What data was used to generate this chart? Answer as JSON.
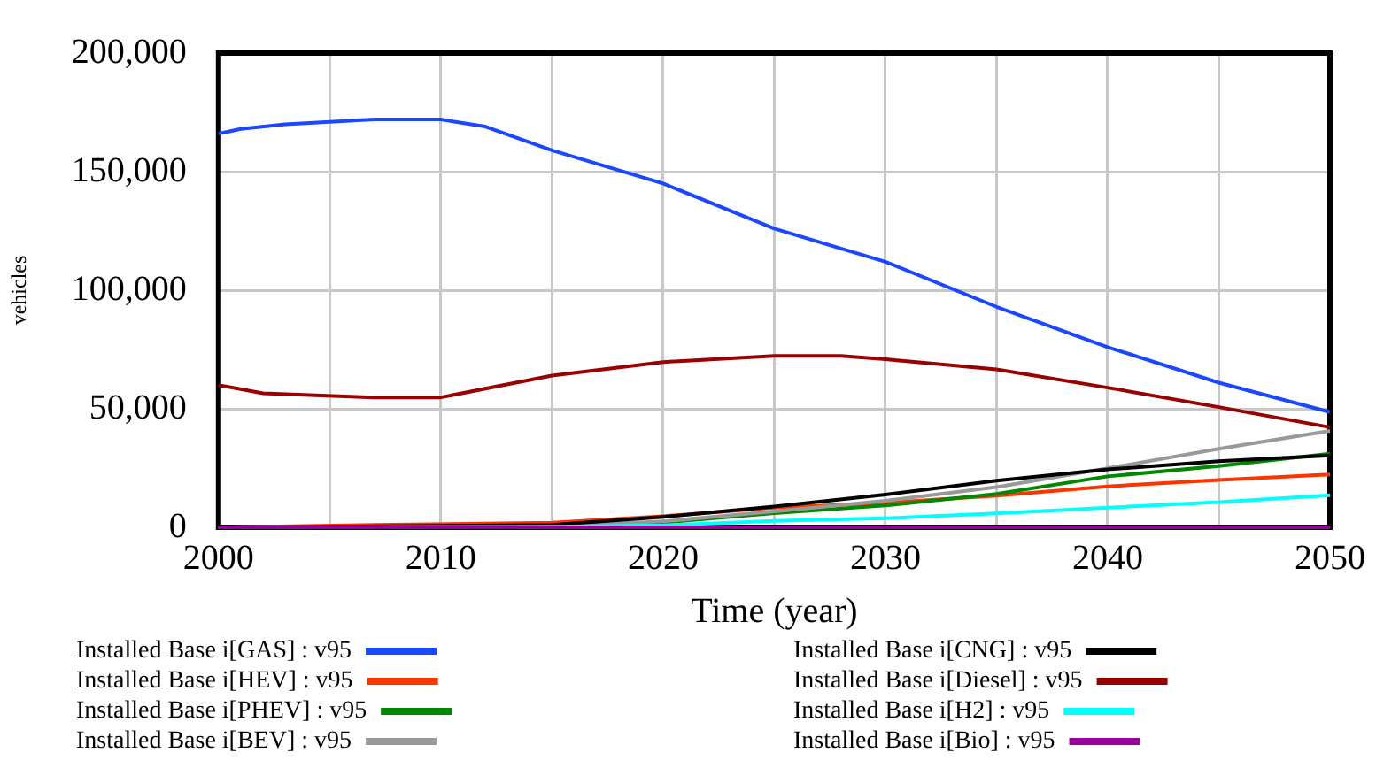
{
  "chart_data": {
    "type": "line",
    "xlabel": "Time (year)",
    "ylabel": "vehicles",
    "xlim": [
      2000,
      2050
    ],
    "ylim": [
      0,
      200000
    ],
    "xticks": [
      2000,
      {
        "value": 2005,
        "label": null
      },
      2010,
      {
        "value": 2015,
        "label": null
      },
      2020,
      {
        "value": 2025,
        "label": null
      },
      2030,
      {
        "value": 2035,
        "label": null
      },
      2040,
      {
        "value": 2045,
        "label": null
      },
      2050
    ],
    "yticks": [
      0,
      {
        "value": 50000,
        "label": "50,000"
      },
      {
        "value": 100000,
        "label": "100,000"
      },
      {
        "value": 150000,
        "label": "150,000"
      },
      {
        "value": 200000,
        "label": "200,000"
      }
    ],
    "grid": true,
    "legend": "bottom",
    "marker": "none",
    "line_style": "solid",
    "series": [
      {
        "name": "Installed Base i[GAS] : v95",
        "color": "#1a47ff",
        "x": [
          2000,
          2001,
          2003,
          2007,
          2010,
          2012,
          2015,
          2020,
          2025,
          2030,
          2035,
          2040,
          2045,
          2050
        ],
        "values": [
          166000,
          168000,
          170000,
          172000,
          172000,
          169000,
          159000,
          145000,
          126000,
          112000,
          93000,
          76000,
          61000,
          48600
        ]
      },
      {
        "name": "Installed Base i[HEV] : v95",
        "color": "#ff3300",
        "x": [
          2000,
          2007,
          2015,
          2020,
          2025,
          2030,
          2035,
          2040,
          2045,
          2050
        ],
        "values": [
          0,
          1000,
          2000,
          4700,
          8300,
          10300,
          13300,
          17300,
          20000,
          22300
        ]
      },
      {
        "name": "Installed Base i[PHEV] : v95",
        "color": "#008800",
        "x": [
          2000,
          2015,
          2020,
          2025,
          2030,
          2035,
          2040,
          2045,
          2050
        ],
        "values": [
          0,
          500,
          2000,
          6000,
          9200,
          14100,
          21500,
          25800,
          31100
        ]
      },
      {
        "name": "Installed Base i[BEV] : v95",
        "color": "#999999",
        "x": [
          2000,
          2015,
          2020,
          2025,
          2030,
          2035,
          2040,
          2045,
          2050
        ],
        "values": [
          0,
          500,
          2500,
          6700,
          11200,
          17000,
          24900,
          33100,
          40700
        ]
      },
      {
        "name": "Installed Base i[CNG] : v95",
        "color": "#000000",
        "x": [
          2000,
          2015,
          2020,
          2025,
          2030,
          2035,
          2040,
          2045,
          2050
        ],
        "values": [
          0,
          1000,
          4400,
          8800,
          13800,
          19700,
          24400,
          27900,
          30300
        ]
      },
      {
        "name": "Installed Base i[Diesel] : v95",
        "color": "#990000",
        "x": [
          2000,
          2002,
          2007,
          2010,
          2015,
          2020,
          2025,
          2028,
          2030,
          2035,
          2040,
          2045,
          2050
        ],
        "values": [
          60000,
          56500,
          54800,
          54800,
          64000,
          69700,
          72300,
          72300,
          70900,
          66600,
          58900,
          50700,
          42200
        ]
      },
      {
        "name": "Installed Base i[H2] : v95",
        "color": "#00ffff",
        "x": [
          2000,
          2015,
          2020,
          2025,
          2030,
          2035,
          2040,
          2045,
          2050
        ],
        "values": [
          0,
          300,
          800,
          2700,
          3800,
          5900,
          8300,
          10600,
          13500
        ]
      },
      {
        "name": "Installed Base i[Bio] : v95",
        "color": "#990099",
        "x": [
          2000,
          2050
        ],
        "values": [
          0,
          0
        ]
      }
    ]
  }
}
